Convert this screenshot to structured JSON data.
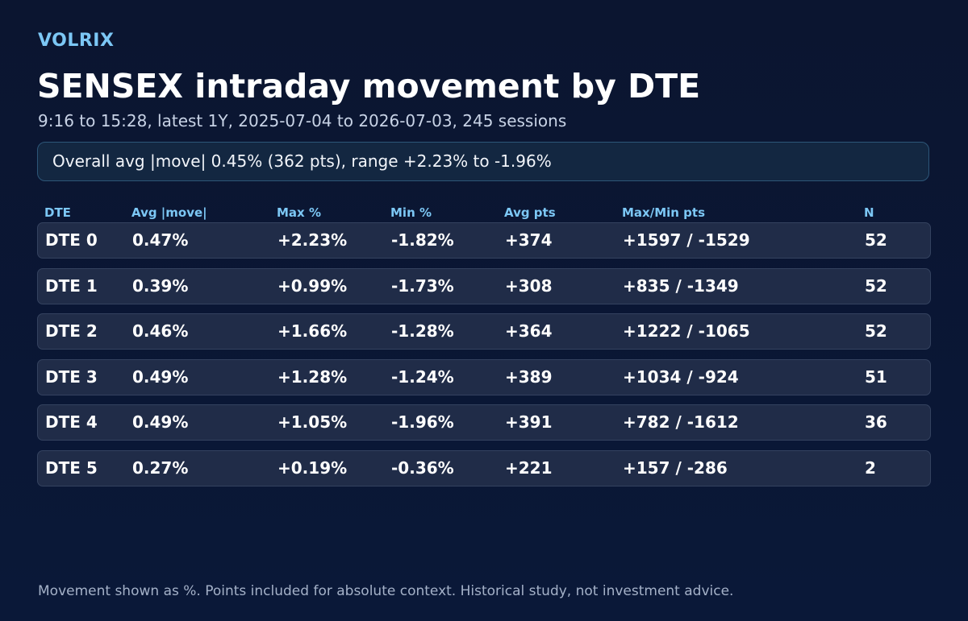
{
  "brand": "VOLRIX",
  "title": "SENSEX intraday movement by DTE",
  "subtitle": "9:16 to 15:28, latest 1Y, 2025-07-04 to 2026-07-03, 245 sessions",
  "summary": "Overall avg |move| 0.45% (362 pts), range +2.23% to -1.96%",
  "table": {
    "headers": [
      "DTE",
      "Avg |move|",
      "Max %",
      "Min %",
      "Avg pts",
      "Max/Min pts",
      "N"
    ],
    "rows": [
      [
        "DTE 0",
        "0.47%",
        "+2.23%",
        "-1.82%",
        "+374",
        "+1597 / -1529",
        "52"
      ],
      [
        "DTE 1",
        "0.39%",
        "+0.99%",
        "-1.73%",
        "+308",
        "+835 / -1349",
        "52"
      ],
      [
        "DTE 2",
        "0.46%",
        "+1.66%",
        "-1.28%",
        "+364",
        "+1222 / -1065",
        "52"
      ],
      [
        "DTE 3",
        "0.49%",
        "+1.28%",
        "-1.24%",
        "+389",
        "+1034 / -924",
        "51"
      ],
      [
        "DTE 4",
        "0.49%",
        "+1.05%",
        "-1.96%",
        "+391",
        "+782 / -1612",
        "36"
      ],
      [
        "DTE 5",
        "0.27%",
        "+0.19%",
        "-0.36%",
        "+221",
        "+157 / -286",
        "2"
      ]
    ]
  },
  "footer": "Movement shown as %. Points included for absolute context. Historical study, not investment advice.",
  "colors": {
    "background": "#0b1530",
    "accent": "#7cc7f5",
    "row_background": "#202c48",
    "summary_background": "#132741",
    "summary_border": "#2d5678"
  }
}
